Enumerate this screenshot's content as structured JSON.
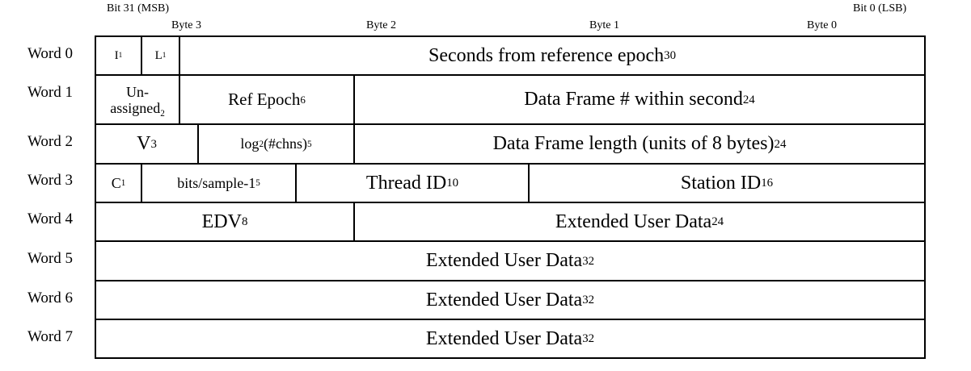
{
  "header": {
    "msb": "Bit 31 (MSB)",
    "lsb": "Bit 0 (LSB)",
    "byte3": "Byte 3",
    "byte2": "Byte 2",
    "byte1": "Byte 1",
    "byte0": "Byte 0"
  },
  "words": [
    "Word 0",
    "Word 1",
    "Word 2",
    "Word 3",
    "Word 4",
    "Word 5",
    "Word 6",
    "Word 7"
  ],
  "fields": {
    "w0_i": {
      "label": "I",
      "sub": "1"
    },
    "w0_l": {
      "label": "L",
      "sub": "1"
    },
    "w0_seconds": {
      "label": "Seconds from reference epoch",
      "sub": "30"
    },
    "w1_unassigned": {
      "line1": "Un-",
      "line2": "assigned",
      "sub": "2"
    },
    "w1_refepoch": {
      "label": "Ref Epoch",
      "sub": "6"
    },
    "w1_frame": {
      "label": "Data Frame # within second",
      "sub": "24"
    },
    "w2_v": {
      "label": "V",
      "sub": "3"
    },
    "w2_log": {
      "pre": "log",
      "pre_sub": "2",
      "label": "(#chns)",
      "sub": "5"
    },
    "w2_length": {
      "label": "Data Frame length (units of 8 bytes)",
      "sub": "24"
    },
    "w3_c": {
      "label": "C",
      "sub": "1"
    },
    "w3_bits": {
      "label": "bits/sample-1",
      "sub": "5"
    },
    "w3_thread": {
      "label": "Thread ID",
      "sub": "10"
    },
    "w3_station": {
      "label": "Station ID",
      "sub": "16"
    },
    "w4_edv": {
      "label": "EDV",
      "sub": "8"
    },
    "w4_ext": {
      "label": "Extended User Data",
      "sub": "24"
    },
    "w5_ext": {
      "label": "Extended User Data",
      "sub": "32"
    },
    "w6_ext": {
      "label": "Extended User Data",
      "sub": "32"
    },
    "w7_ext": {
      "label": "Extended User Data",
      "sub": "32"
    }
  }
}
